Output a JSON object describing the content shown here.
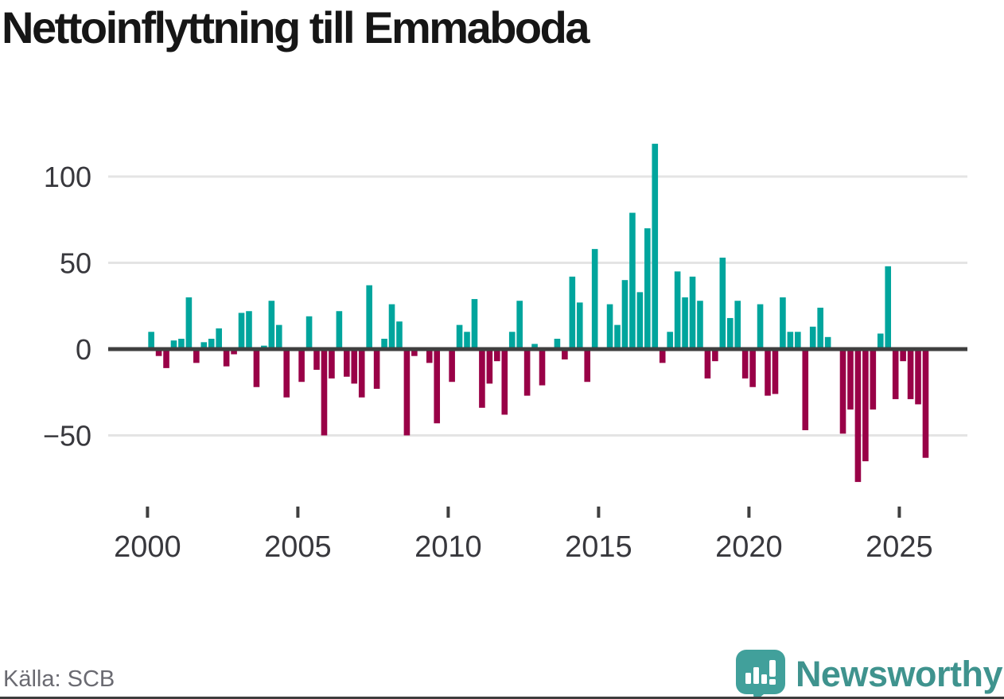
{
  "title": "Nettoinflyttning till Emmaboda",
  "source": "Källa: SCB",
  "branding": {
    "logo_text": "Newsworthy",
    "logo_icon": "newsworthy-speech-bubble-bar-chart-icon"
  },
  "colors": {
    "positive_bar": "#00a59d",
    "negative_bar": "#990147",
    "zero_axis": "#3f3f3f",
    "gridline": "#e4e4e4",
    "tick_text": "#38383d",
    "title_text": "#161616",
    "source_text": "#6a6a71",
    "brand_teal": "#3f938e",
    "logo_bubble": "#41a09b"
  },
  "chart_data": {
    "type": "bar",
    "title": "Nettoinflyttning till Emmaboda",
    "frequency": "quarterly",
    "start_year": 2000,
    "start_quarter": 1,
    "end_year": 2025,
    "end_quarter": 4,
    "y_ticks": [
      100,
      50,
      0,
      -50
    ],
    "y_tick_labels": [
      "100",
      "50",
      "0",
      "−50"
    ],
    "x_ticks": [
      2000,
      2005,
      2010,
      2015,
      2020,
      2025
    ],
    "x_tick_labels": [
      "2000",
      "2005",
      "2010",
      "2015",
      "2020",
      "2025"
    ],
    "ylim": [
      -85,
      130
    ],
    "grid": true,
    "legend": "none",
    "values": [
      10,
      -4,
      -11,
      5,
      6,
      30,
      -8,
      4,
      6,
      12,
      -10,
      -3,
      21,
      22,
      -22,
      2,
      28,
      14,
      -28,
      0,
      -19,
      19,
      -12,
      -50,
      -17,
      22,
      -16,
      -20,
      -28,
      37,
      -23,
      6,
      26,
      16,
      -50,
      -4,
      0,
      -8,
      -43,
      0,
      -19,
      14,
      10,
      29,
      -34,
      -20,
      -7,
      -38,
      10,
      28,
      -27,
      3,
      -21,
      0,
      6,
      -6,
      42,
      27,
      -19,
      58,
      0,
      26,
      14,
      40,
      79,
      33,
      70,
      119,
      -8,
      10,
      45,
      30,
      42,
      28,
      -17,
      -7,
      53,
      18,
      28,
      -17,
      -22,
      26,
      -27,
      -26,
      30,
      10,
      10,
      -47,
      13,
      24,
      7,
      0,
      -49,
      -35,
      -77,
      -65,
      -35,
      9,
      48,
      -29,
      -7,
      -29,
      -32,
      -63
    ]
  }
}
